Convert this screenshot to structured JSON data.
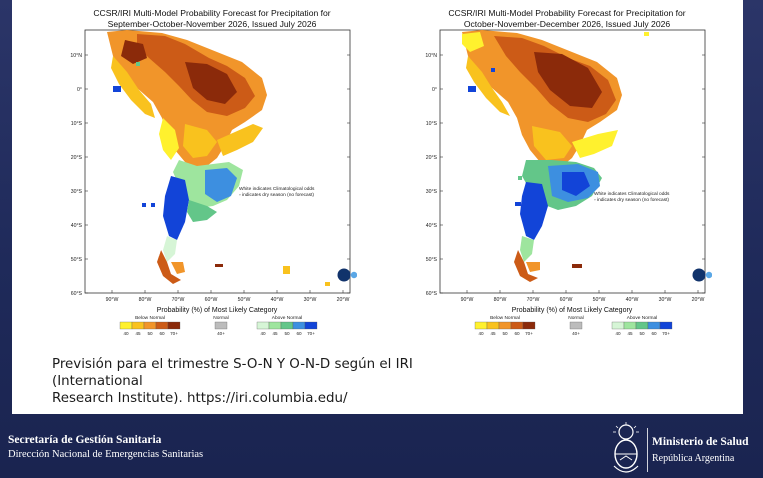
{
  "maps": [
    {
      "title_line1": "CCSR/IRI Multi-Model Probability Forecast for Precipitation for",
      "title_line2": "September-October-November 2026, Issued July 2026",
      "lat_labels": [
        "10°N",
        "0°",
        "10°S",
        "20°S",
        "30°S",
        "40°S",
        "50°S",
        "60°S"
      ],
      "lon_labels": [
        "90°W",
        "80°W",
        "70°W",
        "60°W",
        "50°W",
        "40°W",
        "30°W",
        "20°W"
      ],
      "note_line1": "White indicates Climatological odds",
      "note_line2": "▫ indicates dry season (no forecast)"
    },
    {
      "title_line1": "CCSR/IRI Multi-Model Probability Forecast for Precipitation for",
      "title_line2": "October-November-December 2026, Issued July 2026",
      "lat_labels": [
        "10°N",
        "0°",
        "10°S",
        "20°S",
        "30°S",
        "40°S",
        "50°S",
        "60°S"
      ],
      "lon_labels": [
        "90°W",
        "80°W",
        "70°W",
        "60°W",
        "50°W",
        "40°W",
        "30°W",
        "20°W"
      ],
      "note_line1": "White indicates Climatological odds",
      "note_line2": "▫ indicates dry season (no forecast)"
    }
  ],
  "legend": {
    "heading": "Probability (%) of Most Likely Category",
    "below_label": "Below Normal",
    "normal_label": "Normal",
    "above_label": "Above Normal",
    "below_ticks": [
      "40",
      "45",
      "50",
      "60",
      "70+"
    ],
    "normal_ticks": [
      "40+"
    ],
    "above_ticks": [
      "40",
      "45",
      "50",
      "60",
      "70+"
    ],
    "below_colors": [
      "#fff12e",
      "#f9c21e",
      "#f1952a",
      "#cc5b17",
      "#8b2a0a"
    ],
    "normal_color": "#bcbcbc",
    "above_colors": [
      "#d6f5d6",
      "#9ee59e",
      "#63c689",
      "#3d8fe0",
      "#1244d8"
    ]
  },
  "caption": {
    "line1": "Previsión para el trimestre S-O-N Y O-N-D según el IRI",
    "line2": "(International",
    "line3": "Research Institute). https://iri.columbia.edu/"
  },
  "footer": {
    "org_line1": "Secretaría de Gestión Sanitaria",
    "org_line2": "Dirección Nacional de Emergencias Sanitarias",
    "ministry": "Ministerio de Salud",
    "republic": "República Argentina",
    "emblem_icon": "argentina-coat-of-arms-icon"
  }
}
